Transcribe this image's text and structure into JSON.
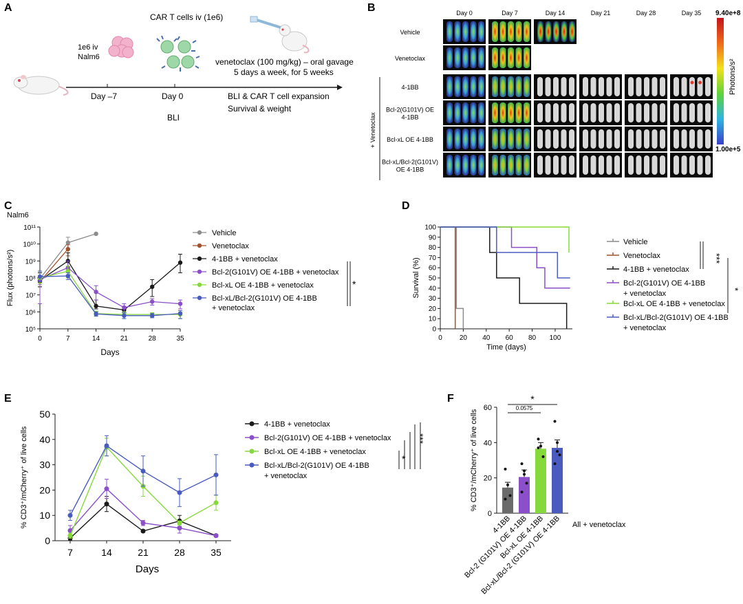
{
  "panel_letters": [
    "A",
    "B",
    "C",
    "D",
    "E",
    "F"
  ],
  "panelA": {
    "day_minus7_top": "1e6 iv",
    "day_minus7_bottom": "Nalm6",
    "car_t_label": "CAR T cells iv (1e6)",
    "venetoclax_line1": "venetoclax (100 mg/kg) – oral gavage",
    "venetoclax_line2": "5 days a week, for 5 weeks",
    "day_minus7": "Day –7",
    "day0": "Day 0",
    "bli": "BLI",
    "readout1": "BLI & CAR T cell expansion",
    "readout2": "Survival & weight"
  },
  "panelB": {
    "days": [
      "Day 0",
      "Day 7",
      "Day 14",
      "Day 21",
      "Day 28",
      "Day 35"
    ],
    "rows": [
      {
        "label": [
          "Vehicle"
        ],
        "tiles": [
          "hot-low",
          "hot-high",
          "hot-max",
          "",
          "",
          ""
        ]
      },
      {
        "label": [
          "Venetoclax"
        ],
        "tiles": [
          "hot-low",
          "hot-high",
          "",
          "",
          "",
          ""
        ]
      },
      {
        "label": [
          "4-1BB"
        ],
        "tiles": [
          "hot-low",
          "hot-mid",
          "grey",
          "grey",
          "grey",
          "grey-spot"
        ]
      },
      {
        "label": [
          "Bcl-2(G101V) OE",
          "4-1BB"
        ],
        "tiles": [
          "hot-low",
          "hot-high",
          "grey",
          "grey",
          "grey",
          "grey"
        ]
      },
      {
        "label": [
          "Bcl-xL OE 4-1BB"
        ],
        "tiles": [
          "hot-low",
          "hot-mid",
          "grey",
          "grey",
          "grey",
          "grey"
        ]
      },
      {
        "label": [
          "Bcl-xL/Bcl-2(G101V)",
          "OE 4-1BB"
        ],
        "tiles": [
          "hot-low",
          "hot-mid",
          "grey",
          "grey",
          "grey",
          "grey"
        ]
      }
    ],
    "group_label": "+ Venetoclax",
    "scale_max": "9.40e+8",
    "scale_min": "1.00e+5",
    "scale_unit": "Photons/s²"
  },
  "colors": {
    "vehicle": "#8c8c8c",
    "venetoclax": "#a0522d",
    "bb": "#1a1a1a",
    "bcl2": "#8b4fc9",
    "bclxl": "#86d93a",
    "dual": "#4a5bbf"
  },
  "chart_data": [
    {
      "id": "C",
      "type": "line",
      "title": "Nalm6",
      "xlabel": "Days",
      "ylabel": "Flux (photons/s²)",
      "log_scale": true,
      "xlim": [
        0,
        35
      ],
      "ylim": [
        100000,
        100000000000
      ],
      "x_ticks": [
        0,
        7,
        14,
        21,
        28,
        35
      ],
      "y_ticks": [
        "10⁵",
        "10⁶",
        "10⁷",
        "10⁸",
        "10⁹",
        "10¹⁰",
        "10¹¹"
      ],
      "series": [
        {
          "name": "Vehicle",
          "color_key": "vehicle",
          "x": [
            0,
            7,
            14
          ],
          "y": [
            90000000,
            12000000000,
            40000000000
          ],
          "err": [
            [
              40000000,
              200000000
            ],
            [
              5000000000,
              25000000000
            ],
            [
              40000000000,
              40000000000
            ]
          ]
        },
        {
          "name": "Venetoclax",
          "color_key": "venetoclax",
          "x": [
            0,
            7
          ],
          "y": [
            60000000,
            5000000000
          ],
          "err": [
            [
              30000000,
              120000000
            ],
            [
              2000000000,
              9000000000
            ]
          ]
        },
        {
          "name": "4-1BB + venetoclax",
          "color_key": "bb",
          "x": [
            0,
            7,
            14,
            21,
            28,
            35
          ],
          "y": [
            70000000,
            1000000000,
            2200000,
            1300000,
            30000000,
            800000000
          ],
          "err": [
            [
              30000000,
              200000000
            ],
            [
              300000000,
              3000000000
            ],
            [
              1500000,
              5000000
            ],
            [
              900000,
              2000000
            ],
            [
              8000000,
              80000000
            ],
            [
              200000000,
              2500000000
            ]
          ]
        },
        {
          "name": "Bcl-2(G101V) OE 4-1BB + venetoclax",
          "color_key": "bcl2",
          "x": [
            0,
            7,
            14,
            21,
            28,
            35
          ],
          "y": [
            80000000,
            400000000,
            15000000,
            1800000,
            4000000,
            3000000
          ],
          "err": [
            [
              3000000,
              250000000
            ],
            [
              150000000,
              1000000000
            ],
            [
              5000000,
              35000000
            ],
            [
              1000000,
              3000000
            ],
            [
              2500000,
              6000000
            ],
            [
              1500000,
              5000000
            ]
          ]
        },
        {
          "name": "Bcl-xL OE 4-1BB + venetoclax",
          "color_key": "bclxl",
          "x": [
            0,
            7,
            14,
            21,
            28,
            35
          ],
          "y": [
            100000000,
            250000000,
            800000,
            700000,
            700000,
            700000
          ],
          "err": [
            [
              50000000,
              250000000
            ],
            [
              100000000,
              500000000
            ],
            [
              600000,
              1100000
            ],
            [
              400000,
              1000000
            ],
            [
              500000,
              900000
            ],
            [
              400000,
              1000000
            ]
          ]
        },
        {
          "name": "Bcl-xL/Bcl-2(G101V) OE 4-1BB",
          "name2": "+ venetoclax",
          "color_key": "dual",
          "x": [
            0,
            7,
            14,
            21,
            28,
            35
          ],
          "y": [
            120000000,
            130000000,
            750000,
            600000,
            600000,
            800000
          ],
          "err": [
            [
              60000000,
              250000000
            ],
            [
              80000000,
              200000000
            ],
            [
              550000,
              1000000
            ],
            [
              400000,
              900000
            ],
            [
              450000,
              800000
            ],
            [
              400000,
              1200000
            ]
          ]
        }
      ],
      "significance": "*"
    },
    {
      "id": "D",
      "type": "line",
      "subtype": "survival",
      "xlabel": "Time (days)",
      "ylabel": "Survival (%)",
      "xlim": [
        0,
        115
      ],
      "ylim": [
        0,
        100
      ],
      "x_ticks": [
        0,
        20,
        40,
        60,
        80,
        100
      ],
      "y_ticks": [
        0,
        10,
        20,
        30,
        40,
        50,
        60,
        70,
        80,
        90,
        100
      ],
      "series": [
        {
          "name": "Vehicle",
          "color_key": "vehicle",
          "steps": [
            [
              0,
              100
            ],
            [
              14,
              100
            ],
            [
              14,
              20
            ],
            [
              20,
              20
            ],
            [
              20,
              0
            ]
          ]
        },
        {
          "name": "Venetoclax",
          "color_key": "venetoclax",
          "steps": [
            [
              0,
              100
            ],
            [
              13,
              100
            ],
            [
              13,
              0
            ]
          ]
        },
        {
          "name": "4-1BB + venetoclax",
          "color_key": "bb",
          "steps": [
            [
              0,
              100
            ],
            [
              43,
              100
            ],
            [
              43,
              75
            ],
            [
              49,
              75
            ],
            [
              49,
              50
            ],
            [
              69,
              50
            ],
            [
              69,
              25
            ],
            [
              110,
              25
            ],
            [
              110,
              0
            ]
          ]
        },
        {
          "name": "Bcl-2(G101V) OE 4-1BB",
          "name2": "+ venetoclax",
          "color_key": "bcl2",
          "steps": [
            [
              0,
              100
            ],
            [
              62,
              100
            ],
            [
              62,
              80
            ],
            [
              84,
              80
            ],
            [
              84,
              60
            ],
            [
              91,
              60
            ],
            [
              91,
              40
            ],
            [
              113,
              40
            ]
          ]
        },
        {
          "name": "Bcl-xL OE 4-1BB + venetoclax",
          "color_key": "bclxl",
          "steps": [
            [
              0,
              100
            ],
            [
              112,
              100
            ],
            [
              112,
              75
            ]
          ]
        },
        {
          "name": "Bcl-xL/Bcl-2(G101V) OE 4-1BB",
          "name2": "+ venetoclax",
          "color_key": "dual",
          "steps": [
            [
              0,
              100
            ],
            [
              49,
              100
            ],
            [
              49,
              75
            ],
            [
              102,
              75
            ],
            [
              102,
              50
            ],
            [
              113,
              50
            ]
          ]
        }
      ],
      "significance": [
        "***",
        "*"
      ]
    },
    {
      "id": "E",
      "type": "line",
      "xlabel": "Days",
      "ylabel": "% CD3⁺/mCherry⁺ of live cells",
      "xlim": [
        7,
        35
      ],
      "ylim": [
        0,
        50
      ],
      "x_ticks": [
        7,
        14,
        21,
        28,
        35
      ],
      "y_ticks": [
        0,
        10,
        20,
        30,
        40,
        50
      ],
      "series": [
        {
          "name": "4-1BB + venetoclax",
          "color_key": "bb",
          "x": [
            7,
            14,
            21,
            28,
            35
          ],
          "y": [
            1,
            14.5,
            3.8,
            7.8,
            2
          ],
          "err": [
            0.8,
            3,
            0.5,
            2.2,
            0.5
          ]
        },
        {
          "name": "Bcl-2(G101V) OE 4-1BB + venetoclax",
          "color_key": "bcl2",
          "x": [
            7,
            14,
            21,
            28,
            35
          ],
          "y": [
            4,
            20.5,
            7,
            5,
            2
          ],
          "err": [
            2,
            3.8,
            1,
            2,
            0.5
          ]
        },
        {
          "name": "Bcl-xL OE 4-1BB + venetoclax",
          "color_key": "bclxl",
          "x": [
            7,
            14,
            21,
            28,
            35
          ],
          "y": [
            2,
            37,
            21.5,
            7,
            15
          ],
          "err": [
            1,
            3.5,
            4,
            0.8,
            3
          ]
        },
        {
          "name": "Bcl-xL/Bcl-2(G101V) OE 4-1BB",
          "name2": "+ venetoclax",
          "color_key": "dual",
          "x": [
            7,
            14,
            21,
            28,
            35
          ],
          "y": [
            10,
            37.5,
            27.5,
            19,
            26
          ],
          "err": [
            2,
            4,
            6,
            5.5,
            8
          ]
        }
      ],
      "significance": [
        "*",
        "***"
      ]
    },
    {
      "id": "F",
      "type": "bar",
      "ylabel": "% CD3⁺/mCherry⁺ of live cells",
      "ylim": [
        0,
        60
      ],
      "y_ticks": [
        0,
        20,
        40,
        60
      ],
      "categories": [
        "4-1BB",
        "Bcl-2 (G101V) OE 4-1BB",
        "Bcl-xL OE 4-1BB",
        "Bcl-xL/Bcl-2 (G101V) OE 4-1BB"
      ],
      "color_keys": [
        "greybar",
        "bcl2",
        "bclxl",
        "dual"
      ],
      "values": [
        14.5,
        20.5,
        36.5,
        37
      ],
      "errors": [
        3,
        4,
        3.5,
        4.5
      ],
      "points": [
        [
          25,
          16,
          10,
          8
        ],
        [
          28,
          24,
          17,
          12,
          22
        ],
        [
          42,
          38,
          32,
          37
        ],
        [
          52,
          40,
          33,
          28,
          35
        ]
      ],
      "group_note": "All + venetoclax",
      "annotation_p": "0.0575",
      "annotation_sig": "*"
    }
  ]
}
